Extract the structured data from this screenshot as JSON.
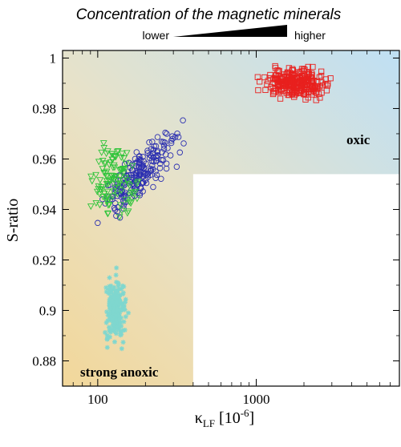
{
  "header": {
    "title": "Concentration of the magnetic minerals",
    "left_label": "lower",
    "right_label": "higher"
  },
  "chart_data": {
    "type": "scatter",
    "title": "",
    "xlabel_main": "κ",
    "xlabel_sub": "LF",
    "xlabel_unit": " [10",
    "xlabel_exp": "-6",
    "xlabel_close": "]",
    "ylabel": "S-ratio",
    "x_scale": "log",
    "xlim": [
      60,
      8000
    ],
    "ylim": [
      0.87,
      1.003
    ],
    "x_ticks": [
      100,
      1000
    ],
    "x_tick_labels": [
      "100",
      "1000"
    ],
    "y_ticks": [
      0.88,
      0.9,
      0.92,
      0.94,
      0.96,
      0.98,
      1.0
    ],
    "y_tick_labels": [
      "0.88",
      "0.9",
      "0.92",
      "0.94",
      "0.96",
      "0.98",
      "1"
    ],
    "regions": [
      {
        "label": "oxic",
        "color": "#bfe0f4"
      },
      {
        "label": "strong anoxic",
        "color": "#f2d79a"
      }
    ],
    "blank_region": {
      "x_from": 400,
      "y_to": 0.954
    },
    "series": [
      {
        "marker": "square",
        "color": "#e8201e",
        "cluster": {
          "x": [
            1000,
            6000
          ],
          "y": [
            0.977,
            0.999
          ],
          "center_x": 1800,
          "center_y": 0.99,
          "n": 260
        }
      },
      {
        "marker": "circle",
        "color": "#2b2fb0",
        "cluster": {
          "x": [
            100,
            900
          ],
          "y": [
            0.92,
            0.99
          ],
          "center_x": 180,
          "center_y": 0.955,
          "n": 200
        }
      },
      {
        "marker": "triangle-down",
        "color": "#2fc43a",
        "cluster": {
          "x": [
            90,
            300
          ],
          "y": [
            0.93,
            0.997
          ],
          "center_x": 130,
          "center_y": 0.952,
          "n": 110
        }
      },
      {
        "marker": "star",
        "color": "#7fd7cf",
        "cluster": {
          "x": [
            100,
            180
          ],
          "y": [
            0.877,
            0.925
          ],
          "center_x": 130,
          "center_y": 0.9,
          "n": 220
        }
      }
    ]
  }
}
